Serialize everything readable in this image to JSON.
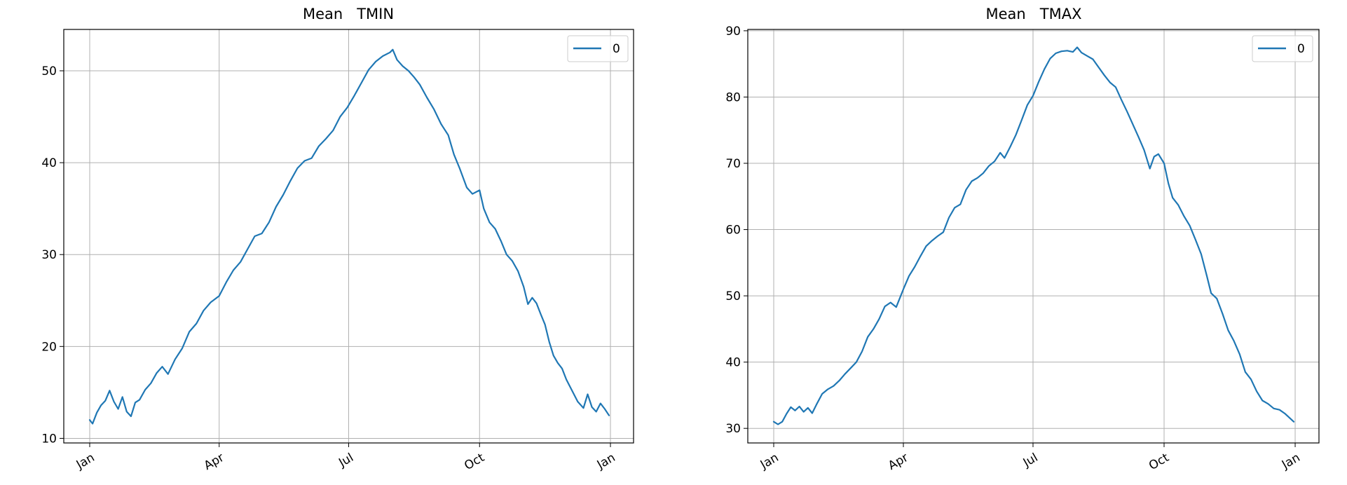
{
  "chart_data": [
    {
      "type": "line",
      "title": "Mean   TMIN",
      "xlabel": "",
      "ylabel": "",
      "x_axis_type": "date",
      "xlim": [
        "2000-01-01",
        "2000-12-31"
      ],
      "x_ticks": [
        "2000-01-01",
        "2000-04-01",
        "2000-07-01",
        "2000-10-01",
        "2001-01-01"
      ],
      "x_tick_labels": [
        "Jan",
        "Apr",
        "Jul",
        "Oct",
        "Jan"
      ],
      "ylim": [
        9.5,
        54.5
      ],
      "y_ticks": [
        10,
        20,
        30,
        40,
        50
      ],
      "grid": true,
      "legend": "top-right",
      "series": [
        {
          "name": "0",
          "color": "#1f77b4",
          "points": [
            [
              "2000-01-01",
              12.0
            ],
            [
              "2000-01-03",
              11.6
            ],
            [
              "2000-01-06",
              12.8
            ],
            [
              "2000-01-09",
              13.6
            ],
            [
              "2000-01-12",
              14.1
            ],
            [
              "2000-01-15",
              15.2
            ],
            [
              "2000-01-18",
              14.0
            ],
            [
              "2000-01-21",
              13.2
            ],
            [
              "2000-01-24",
              14.5
            ],
            [
              "2000-01-27",
              12.9
            ],
            [
              "2000-01-30",
              12.4
            ],
            [
              "2000-02-02",
              13.9
            ],
            [
              "2000-02-05",
              14.2
            ],
            [
              "2000-02-09",
              15.3
            ],
            [
              "2000-02-13",
              16.0
            ],
            [
              "2000-02-17",
              17.1
            ],
            [
              "2000-02-21",
              17.8
            ],
            [
              "2000-02-25",
              17.0
            ],
            [
              "2000-03-01",
              18.6
            ],
            [
              "2000-03-06",
              19.8
            ],
            [
              "2000-03-11",
              21.6
            ],
            [
              "2000-03-16",
              22.5
            ],
            [
              "2000-03-21",
              23.9
            ],
            [
              "2000-03-26",
              24.8
            ],
            [
              "2000-04-01",
              25.5
            ],
            [
              "2000-04-06",
              27.0
            ],
            [
              "2000-04-11",
              28.3
            ],
            [
              "2000-04-16",
              29.2
            ],
            [
              "2000-04-21",
              30.6
            ],
            [
              "2000-04-26",
              32.0
            ],
            [
              "2000-05-01",
              32.3
            ],
            [
              "2000-05-06",
              33.5
            ],
            [
              "2000-05-11",
              35.2
            ],
            [
              "2000-05-16",
              36.5
            ],
            [
              "2000-05-21",
              38.0
            ],
            [
              "2000-05-26",
              39.4
            ],
            [
              "2000-05-31",
              40.2
            ],
            [
              "2000-06-05",
              40.5
            ],
            [
              "2000-06-10",
              41.8
            ],
            [
              "2000-06-15",
              42.6
            ],
            [
              "2000-06-20",
              43.5
            ],
            [
              "2000-06-25",
              45.0
            ],
            [
              "2000-06-30",
              46.0
            ],
            [
              "2000-07-05",
              47.3
            ],
            [
              "2000-07-10",
              48.7
            ],
            [
              "2000-07-15",
              50.1
            ],
            [
              "2000-07-20",
              51.0
            ],
            [
              "2000-07-25",
              51.6
            ],
            [
              "2000-07-30",
              52.0
            ],
            [
              "2000-08-01",
              52.3
            ],
            [
              "2000-08-04",
              51.2
            ],
            [
              "2000-08-08",
              50.5
            ],
            [
              "2000-08-12",
              50.0
            ],
            [
              "2000-08-16",
              49.3
            ],
            [
              "2000-08-20",
              48.5
            ],
            [
              "2000-08-25",
              47.1
            ],
            [
              "2000-08-30",
              45.8
            ],
            [
              "2000-09-04",
              44.2
            ],
            [
              "2000-09-09",
              43.0
            ],
            [
              "2000-09-13",
              40.9
            ],
            [
              "2000-09-17",
              39.4
            ],
            [
              "2000-09-22",
              37.3
            ],
            [
              "2000-09-26",
              36.6
            ],
            [
              "2000-10-01",
              37.0
            ],
            [
              "2000-10-04",
              35.0
            ],
            [
              "2000-10-08",
              33.5
            ],
            [
              "2000-10-12",
              32.8
            ],
            [
              "2000-10-16",
              31.5
            ],
            [
              "2000-10-20",
              30.0
            ],
            [
              "2000-10-24",
              29.3
            ],
            [
              "2000-10-28",
              28.2
            ],
            [
              "2000-11-01",
              26.5
            ],
            [
              "2000-11-04",
              24.6
            ],
            [
              "2000-11-07",
              25.3
            ],
            [
              "2000-11-10",
              24.7
            ],
            [
              "2000-11-13",
              23.5
            ],
            [
              "2000-11-16",
              22.4
            ],
            [
              "2000-11-19",
              20.5
            ],
            [
              "2000-11-22",
              19.0
            ],
            [
              "2000-11-25",
              18.2
            ],
            [
              "2000-11-28",
              17.6
            ],
            [
              "2000-12-01",
              16.4
            ],
            [
              "2000-12-05",
              15.2
            ],
            [
              "2000-12-09",
              14.0
            ],
            [
              "2000-12-13",
              13.3
            ],
            [
              "2000-12-16",
              14.8
            ],
            [
              "2000-12-19",
              13.4
            ],
            [
              "2000-12-22",
              12.9
            ],
            [
              "2000-12-25",
              13.8
            ],
            [
              "2000-12-28",
              13.2
            ],
            [
              "2000-12-31",
              12.5
            ]
          ]
        }
      ]
    },
    {
      "type": "line",
      "title": "Mean   TMAX",
      "xlabel": "",
      "ylabel": "",
      "x_axis_type": "date",
      "xlim": [
        "2000-01-01",
        "2000-12-31"
      ],
      "x_ticks": [
        "2000-01-01",
        "2000-04-01",
        "2000-07-01",
        "2000-10-01",
        "2001-01-01"
      ],
      "x_tick_labels": [
        "Jan",
        "Apr",
        "Jul",
        "Oct",
        "Jan"
      ],
      "ylim": [
        27.8,
        90.2
      ],
      "y_ticks": [
        30,
        40,
        50,
        60,
        70,
        80,
        90
      ],
      "grid": true,
      "legend": "top-right",
      "series": [
        {
          "name": "0",
          "color": "#1f77b4",
          "points": [
            [
              "2000-01-01",
              31.0
            ],
            [
              "2000-01-04",
              30.6
            ],
            [
              "2000-01-07",
              31.0
            ],
            [
              "2000-01-10",
              32.2
            ],
            [
              "2000-01-13",
              33.2
            ],
            [
              "2000-01-16",
              32.7
            ],
            [
              "2000-01-19",
              33.3
            ],
            [
              "2000-01-22",
              32.5
            ],
            [
              "2000-01-25",
              33.1
            ],
            [
              "2000-01-28",
              32.3
            ],
            [
              "2000-01-31",
              33.6
            ],
            [
              "2000-02-04",
              35.2
            ],
            [
              "2000-02-08",
              35.9
            ],
            [
              "2000-02-12",
              36.4
            ],
            [
              "2000-02-16",
              37.2
            ],
            [
              "2000-02-20",
              38.2
            ],
            [
              "2000-02-24",
              39.1
            ],
            [
              "2000-02-28",
              40.0
            ],
            [
              "2000-03-03",
              41.6
            ],
            [
              "2000-03-07",
              43.8
            ],
            [
              "2000-03-11",
              45.0
            ],
            [
              "2000-03-15",
              46.5
            ],
            [
              "2000-03-19",
              48.4
            ],
            [
              "2000-03-23",
              49.0
            ],
            [
              "2000-03-27",
              48.3
            ],
            [
              "2000-04-01",
              51.0
            ],
            [
              "2000-04-05",
              53.0
            ],
            [
              "2000-04-09",
              54.4
            ],
            [
              "2000-04-13",
              56.0
            ],
            [
              "2000-04-17",
              57.5
            ],
            [
              "2000-04-21",
              58.3
            ],
            [
              "2000-04-25",
              59.0
            ],
            [
              "2000-04-29",
              59.6
            ],
            [
              "2000-05-03",
              61.8
            ],
            [
              "2000-05-07",
              63.3
            ],
            [
              "2000-05-11",
              63.8
            ],
            [
              "2000-05-15",
              66.0
            ],
            [
              "2000-05-19",
              67.3
            ],
            [
              "2000-05-23",
              67.8
            ],
            [
              "2000-05-27",
              68.5
            ],
            [
              "2000-05-31",
              69.6
            ],
            [
              "2000-06-04",
              70.3
            ],
            [
              "2000-06-08",
              71.6
            ],
            [
              "2000-06-11",
              70.8
            ],
            [
              "2000-06-15",
              72.5
            ],
            [
              "2000-06-19",
              74.3
            ],
            [
              "2000-06-23",
              76.5
            ],
            [
              "2000-06-27",
              78.8
            ],
            [
              "2000-07-01",
              80.2
            ],
            [
              "2000-07-05",
              82.3
            ],
            [
              "2000-07-09",
              84.2
            ],
            [
              "2000-07-13",
              85.8
            ],
            [
              "2000-07-17",
              86.6
            ],
            [
              "2000-07-21",
              86.9
            ],
            [
              "2000-07-25",
              87.0
            ],
            [
              "2000-07-29",
              86.8
            ],
            [
              "2000-08-01",
              87.5
            ],
            [
              "2000-08-04",
              86.7
            ],
            [
              "2000-08-08",
              86.2
            ],
            [
              "2000-08-12",
              85.7
            ],
            [
              "2000-08-16",
              84.5
            ],
            [
              "2000-08-20",
              83.3
            ],
            [
              "2000-08-24",
              82.2
            ],
            [
              "2000-08-28",
              81.5
            ],
            [
              "2000-09-01",
              79.6
            ],
            [
              "2000-09-05",
              77.8
            ],
            [
              "2000-09-09",
              75.9
            ],
            [
              "2000-09-13",
              74.0
            ],
            [
              "2000-09-17",
              72.0
            ],
            [
              "2000-09-21",
              69.2
            ],
            [
              "2000-09-24",
              71.0
            ],
            [
              "2000-09-27",
              71.4
            ],
            [
              "2000-10-01",
              70.0
            ],
            [
              "2000-10-04",
              67.0
            ],
            [
              "2000-10-07",
              64.8
            ],
            [
              "2000-10-11",
              63.7
            ],
            [
              "2000-10-15",
              62.0
            ],
            [
              "2000-10-19",
              60.6
            ],
            [
              "2000-10-23",
              58.5
            ],
            [
              "2000-10-27",
              56.3
            ],
            [
              "2000-10-31",
              53.0
            ],
            [
              "2000-11-03",
              50.4
            ],
            [
              "2000-11-07",
              49.6
            ],
            [
              "2000-11-11",
              47.3
            ],
            [
              "2000-11-15",
              44.8
            ],
            [
              "2000-11-19",
              43.2
            ],
            [
              "2000-11-23",
              41.2
            ],
            [
              "2000-11-27",
              38.5
            ],
            [
              "2000-12-01",
              37.4
            ],
            [
              "2000-12-05",
              35.6
            ],
            [
              "2000-12-09",
              34.2
            ],
            [
              "2000-12-13",
              33.7
            ],
            [
              "2000-12-17",
              33.0
            ],
            [
              "2000-12-21",
              32.8
            ],
            [
              "2000-12-25",
              32.2
            ],
            [
              "2000-12-28",
              31.6
            ],
            [
              "2000-12-31",
              31.0
            ]
          ]
        }
      ]
    }
  ]
}
